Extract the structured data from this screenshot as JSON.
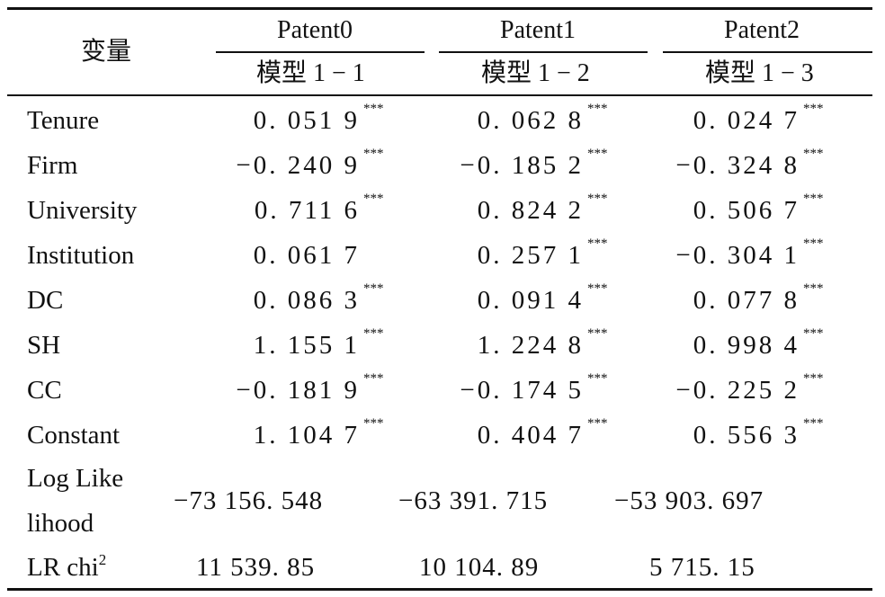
{
  "table": {
    "header": {
      "row_label": "变量",
      "groups": [
        {
          "patent": "Patent0",
          "model": "模型 1 − 1"
        },
        {
          "patent": "Patent1",
          "model": "模型 1 − 2"
        },
        {
          "patent": "Patent2",
          "model": "模型 1 − 3"
        }
      ]
    },
    "rows": [
      {
        "label": "Tenure",
        "cells": [
          {
            "v": "0. 051 9",
            "s": "***"
          },
          {
            "v": "0. 062 8",
            "s": "***"
          },
          {
            "v": "0. 024 7",
            "s": "***"
          }
        ]
      },
      {
        "label": "Firm",
        "cells": [
          {
            "v": "−0. 240 9",
            "s": "***"
          },
          {
            "v": "−0. 185 2",
            "s": "***"
          },
          {
            "v": "−0. 324 8",
            "s": "***"
          }
        ]
      },
      {
        "label": "University",
        "cells": [
          {
            "v": "0. 711 6",
            "s": "***"
          },
          {
            "v": "0. 824 2",
            "s": "***"
          },
          {
            "v": "0. 506 7",
            "s": "***"
          }
        ]
      },
      {
        "label": "Institution",
        "cells": [
          {
            "v": "0. 061 7",
            "s": ""
          },
          {
            "v": "0. 257 1",
            "s": "***"
          },
          {
            "v": "−0. 304 1",
            "s": "***"
          }
        ]
      },
      {
        "label": "DC",
        "cells": [
          {
            "v": "0. 086 3",
            "s": "***"
          },
          {
            "v": "0. 091 4",
            "s": "***"
          },
          {
            "v": "0. 077 8",
            "s": "***"
          }
        ]
      },
      {
        "label": "SH",
        "cells": [
          {
            "v": "1. 155 1",
            "s": "***"
          },
          {
            "v": "1. 224 8",
            "s": "***"
          },
          {
            "v": "0. 998 4",
            "s": "***"
          }
        ]
      },
      {
        "label": "CC",
        "cells": [
          {
            "v": "−0. 181 9",
            "s": "***"
          },
          {
            "v": "−0. 174 5",
            "s": "***"
          },
          {
            "v": "−0. 225 2",
            "s": "***"
          }
        ]
      },
      {
        "label": "Constant",
        "cells": [
          {
            "v": "1. 104 7",
            "s": "***"
          },
          {
            "v": "0. 404 7",
            "s": "***"
          },
          {
            "v": "0. 556 3",
            "s": "***"
          }
        ]
      }
    ],
    "loglik": {
      "label_line1": "Log Like",
      "label_line2": "lihood",
      "values": [
        "−73 156. 548",
        "−63 391. 715",
        "−53 903. 697"
      ]
    },
    "lr": {
      "label": "LR chi",
      "label_sup": "2",
      "values": [
        "11 539. 85",
        "10 104. 89",
        "5 715. 15"
      ]
    }
  }
}
